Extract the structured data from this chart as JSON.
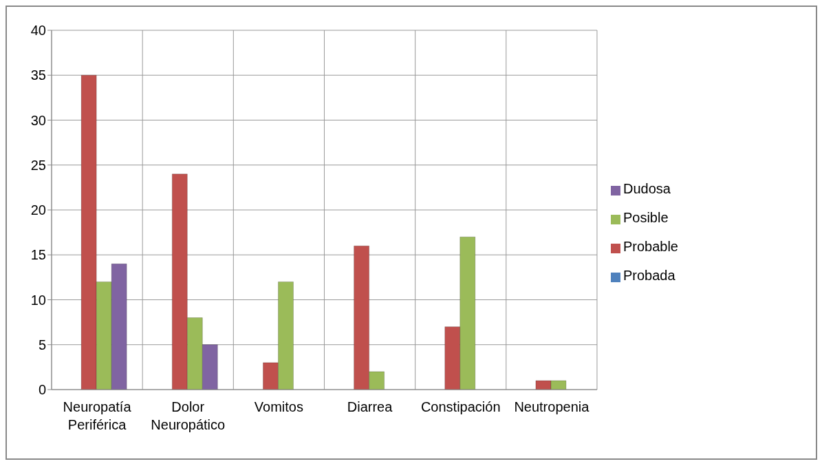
{
  "chart_data": {
    "type": "bar",
    "categories": [
      "Neuropatía Periférica",
      "Dolor Neuropático",
      "Vomitos",
      "Diarrea",
      "Constipación",
      "Neutropenia"
    ],
    "series": [
      {
        "name": "Probada",
        "color": "#4f81bd",
        "values": [
          0,
          0,
          0,
          0,
          0,
          0
        ]
      },
      {
        "name": "Probable",
        "color": "#c0504d",
        "values": [
          35,
          24,
          3,
          16,
          7,
          1
        ]
      },
      {
        "name": "Posible",
        "color": "#9bbb59",
        "values": [
          12,
          8,
          12,
          2,
          17,
          1
        ]
      },
      {
        "name": "Dudosa",
        "color": "#8064a2",
        "values": [
          14,
          5,
          0,
          0,
          0,
          0
        ]
      }
    ],
    "ylim": [
      0,
      40
    ],
    "yticks": [
      0,
      5,
      10,
      15,
      20,
      25,
      30,
      35,
      40
    ],
    "grid": true,
    "legend": "right"
  }
}
